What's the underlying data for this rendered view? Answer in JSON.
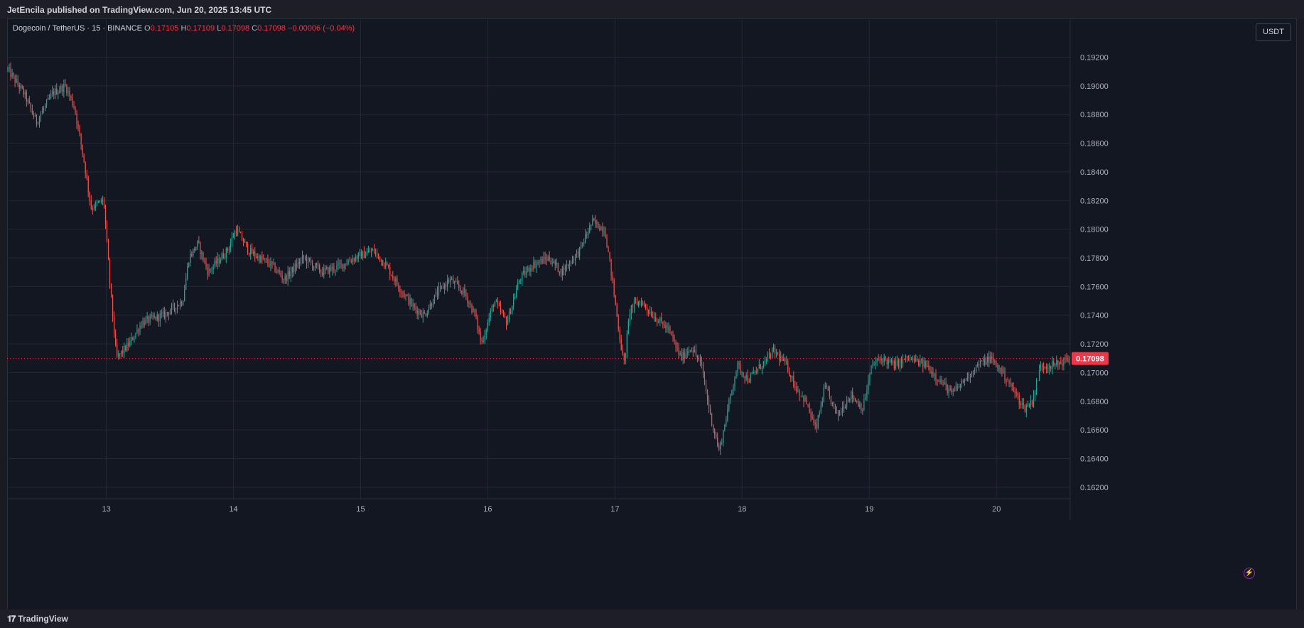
{
  "publish_line": "JetEncila published on TradingView.com, Jun 20, 2025 13:45 UTC",
  "legend": {
    "symbol": "Dogecoin / TetherUS · 15 · BINANCE",
    "o_label": "O",
    "o_value": "0.17105",
    "h_label": "H",
    "h_value": "0.17109",
    "l_label": "L",
    "l_value": "0.17098",
    "c_label": "C",
    "c_value": "0.17098",
    "change": "−0.00006 (−0.04%)"
  },
  "currency_label": "USDT",
  "footer_brand": "TradingView",
  "colors": {
    "up": "#26a69a",
    "down": "#ef5350",
    "background": "#131722",
    "grid": "#242733",
    "last_price": "#f23645"
  },
  "chart_data": {
    "type": "candlestick",
    "title": "Dogecoin / TetherUS · 15 · BINANCE",
    "x_ticks": [
      "13",
      "14",
      "15",
      "16",
      "17",
      "18",
      "19",
      "20"
    ],
    "x_tick_pos": [
      1,
      2,
      3,
      4,
      5,
      6,
      7,
      8
    ],
    "x_range": [
      0.22,
      8.58
    ],
    "y_ticks": [
      "0.19200",
      "0.19000",
      "0.18800",
      "0.18600",
      "0.18400",
      "0.18200",
      "0.18000",
      "0.17800",
      "0.17600",
      "0.17400",
      "0.17200",
      "0.17000",
      "0.16800",
      "0.16600",
      "0.16400",
      "0.16200"
    ],
    "y_range": [
      0.1612,
      0.1947
    ],
    "last_price": 0.17098,
    "last_price_label": "0.17098",
    "grid": true,
    "anchors": [
      [
        0.22,
        0.1912
      ],
      [
        0.35,
        0.1895
      ],
      [
        0.45,
        0.1875
      ],
      [
        0.58,
        0.1895
      ],
      [
        0.68,
        0.19
      ],
      [
        0.75,
        0.1885
      ],
      [
        0.82,
        0.185
      ],
      [
        0.88,
        0.1815
      ],
      [
        0.98,
        0.182
      ],
      [
        1.03,
        0.176
      ],
      [
        1.08,
        0.171
      ],
      [
        1.18,
        0.172
      ],
      [
        1.28,
        0.1735
      ],
      [
        1.45,
        0.174
      ],
      [
        1.6,
        0.175
      ],
      [
        1.65,
        0.178
      ],
      [
        1.72,
        0.179
      ],
      [
        1.8,
        0.177
      ],
      [
        1.95,
        0.1785
      ],
      [
        2.02,
        0.18
      ],
      [
        2.12,
        0.1785
      ],
      [
        2.2,
        0.178
      ],
      [
        2.3,
        0.1775
      ],
      [
        2.4,
        0.1765
      ],
      [
        2.55,
        0.178
      ],
      [
        2.7,
        0.177
      ],
      [
        2.85,
        0.1775
      ],
      [
        2.95,
        0.178
      ],
      [
        3.1,
        0.1785
      ],
      [
        3.2,
        0.1775
      ],
      [
        3.3,
        0.176
      ],
      [
        3.42,
        0.1745
      ],
      [
        3.5,
        0.174
      ],
      [
        3.6,
        0.1755
      ],
      [
        3.7,
        0.1765
      ],
      [
        3.82,
        0.1755
      ],
      [
        3.9,
        0.174
      ],
      [
        3.95,
        0.172
      ],
      [
        4.05,
        0.175
      ],
      [
        4.15,
        0.1735
      ],
      [
        4.25,
        0.1765
      ],
      [
        4.35,
        0.1775
      ],
      [
        4.48,
        0.178
      ],
      [
        4.58,
        0.177
      ],
      [
        4.72,
        0.1785
      ],
      [
        4.82,
        0.1805
      ],
      [
        4.92,
        0.18
      ],
      [
        4.97,
        0.177
      ],
      [
        5.03,
        0.173
      ],
      [
        5.07,
        0.1705
      ],
      [
        5.12,
        0.1745
      ],
      [
        5.2,
        0.175
      ],
      [
        5.3,
        0.174
      ],
      [
        5.42,
        0.173
      ],
      [
        5.52,
        0.171
      ],
      [
        5.6,
        0.1718
      ],
      [
        5.68,
        0.1705
      ],
      [
        5.75,
        0.167
      ],
      [
        5.82,
        0.1645
      ],
      [
        5.9,
        0.168
      ],
      [
        5.96,
        0.1705
      ],
      [
        6.05,
        0.1695
      ],
      [
        6.15,
        0.1705
      ],
      [
        6.25,
        0.1715
      ],
      [
        6.35,
        0.1705
      ],
      [
        6.42,
        0.169
      ],
      [
        6.5,
        0.168
      ],
      [
        6.58,
        0.166
      ],
      [
        6.65,
        0.169
      ],
      [
        6.75,
        0.167
      ],
      [
        6.85,
        0.1685
      ],
      [
        6.95,
        0.1675
      ],
      [
        7.02,
        0.1705
      ],
      [
        7.1,
        0.171
      ],
      [
        7.2,
        0.1705
      ],
      [
        7.3,
        0.171
      ],
      [
        7.45,
        0.1705
      ],
      [
        7.55,
        0.1695
      ],
      [
        7.65,
        0.1685
      ],
      [
        7.75,
        0.1695
      ],
      [
        7.85,
        0.1705
      ],
      [
        7.95,
        0.171
      ],
      [
        8.05,
        0.17
      ],
      [
        8.15,
        0.1685
      ],
      [
        8.22,
        0.1675
      ],
      [
        8.28,
        0.168
      ],
      [
        8.35,
        0.1705
      ],
      [
        8.45,
        0.1705
      ],
      [
        8.58,
        0.17098
      ]
    ]
  }
}
